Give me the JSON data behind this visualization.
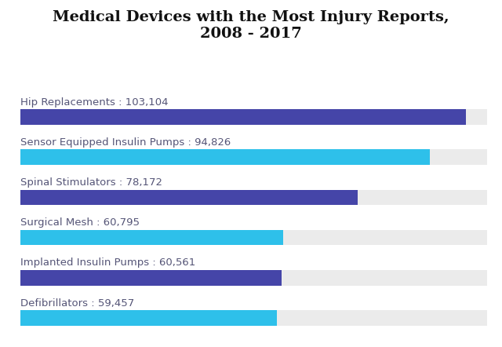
{
  "title": "Medical Devices with the Most Injury Reports,\n2008 - 2017",
  "categories": [
    "Hip Replacements : 103,104",
    "Sensor Equipped Insulin Pumps : 94,826",
    "Spinal Stimulators : 78,172",
    "Surgical Mesh : 60,795",
    "Implanted Insulin Pumps : 60,561",
    "Defibrillators : 59,457"
  ],
  "values": [
    103104,
    94826,
    78172,
    60795,
    60561,
    59457
  ],
  "max_value": 108000,
  "bar_colors": [
    "#4545a8",
    "#2ec0ea",
    "#4545a8",
    "#2ec0ea",
    "#4545a8",
    "#2ec0ea"
  ],
  "background_color": "#ffffff",
  "bar_bg_color": "#ebebeb",
  "label_color": "#555577",
  "title_color": "#111111",
  "title_fontsize": 14,
  "label_fontsize": 9.5,
  "bar_height": 0.38,
  "bar_spacing": 1.0
}
